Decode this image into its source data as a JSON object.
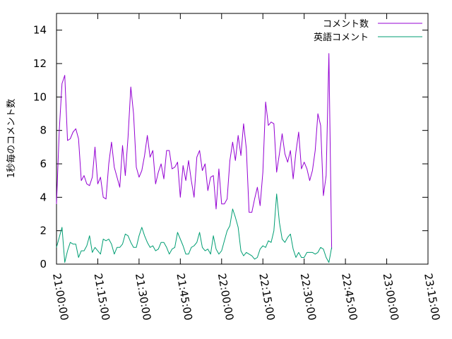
{
  "chart_data": {
    "type": "line",
    "title": "",
    "xlabel": "",
    "ylabel": "1秒毎のコメント数",
    "ylim": [
      0,
      15
    ],
    "yticks": [
      "0",
      "2",
      "4",
      "6",
      "8",
      "10",
      "12",
      "14"
    ],
    "xlim": [
      "21:00:00",
      "23:15:00"
    ],
    "xticks": [
      "21:00:00",
      "21:15:00",
      "21:30:00",
      "21:45:00",
      "22:00:00",
      "22:15:00",
      "22:30:00",
      "22:45:00",
      "23:00:00",
      "23:15:00"
    ],
    "grid": false,
    "legend": "top-right",
    "x_step_seconds": 60,
    "series": [
      {
        "name": "コメント数",
        "color": "#9400d3",
        "values": [
          3.6,
          8.0,
          10.8,
          11.3,
          7.4,
          7.5,
          7.9,
          8.1,
          7.5,
          5.0,
          5.3,
          4.8,
          4.7,
          5.2,
          7.0,
          4.8,
          5.2,
          4.0,
          3.9,
          6.0,
          7.3,
          5.8,
          5.2,
          4.6,
          7.1,
          5.3,
          7.6,
          10.6,
          9.0,
          5.8,
          5.2,
          5.6,
          6.5,
          7.7,
          6.4,
          6.8,
          4.8,
          5.5,
          6.0,
          5.1,
          6.8,
          6.8,
          5.7,
          5.8,
          6.1,
          4.0,
          5.9,
          5.0,
          6.2,
          5.0,
          4.0,
          6.4,
          6.8,
          5.6,
          6.0,
          4.4,
          5.2,
          5.3,
          3.3,
          5.7,
          3.6,
          3.6,
          3.9,
          6.2,
          7.3,
          6.2,
          7.7,
          6.5,
          8.4,
          6.9,
          3.1,
          3.1,
          3.9,
          4.6,
          3.5,
          5.5,
          9.7,
          8.3,
          8.5,
          8.4,
          5.5,
          6.6,
          7.8,
          6.6,
          6.1,
          6.8,
          5.1,
          6.7,
          7.9,
          5.7,
          6.1,
          5.7,
          5.0,
          5.6,
          6.8,
          9.0,
          8.3,
          4.1,
          5.3,
          12.6,
          0.9
        ]
      },
      {
        "name": "英語コメント",
        "color": "#009e73",
        "values": [
          1.0,
          1.6,
          2.2,
          0.1,
          0.8,
          1.3,
          1.2,
          1.2,
          0.4,
          0.8,
          0.8,
          1.1,
          1.7,
          0.7,
          1.0,
          0.8,
          0.6,
          1.5,
          1.4,
          1.5,
          1.2,
          0.6,
          1.0,
          1.0,
          1.2,
          1.8,
          1.7,
          1.3,
          1.0,
          1.0,
          1.7,
          2.2,
          1.7,
          1.3,
          1.0,
          1.1,
          0.8,
          0.9,
          1.3,
          1.3,
          1.0,
          0.6,
          0.9,
          1.0,
          1.9,
          1.5,
          1.1,
          0.6,
          0.6,
          1.0,
          1.1,
          1.3,
          1.9,
          1.0,
          0.8,
          0.9,
          0.6,
          1.7,
          0.9,
          0.6,
          0.8,
          1.4,
          2.0,
          2.3,
          3.3,
          2.8,
          2.2,
          0.8,
          0.5,
          0.7,
          0.6,
          0.5,
          0.3,
          0.4,
          0.9,
          1.1,
          1.0,
          1.4,
          1.3,
          2.0,
          4.2,
          2.5,
          1.5,
          1.3,
          1.6,
          1.8,
          0.9,
          0.4,
          0.7,
          0.4,
          0.4,
          0.7,
          0.7,
          0.7,
          0.6,
          0.7,
          1.0,
          0.9,
          0.4,
          0.1,
          1.0
        ]
      }
    ]
  }
}
